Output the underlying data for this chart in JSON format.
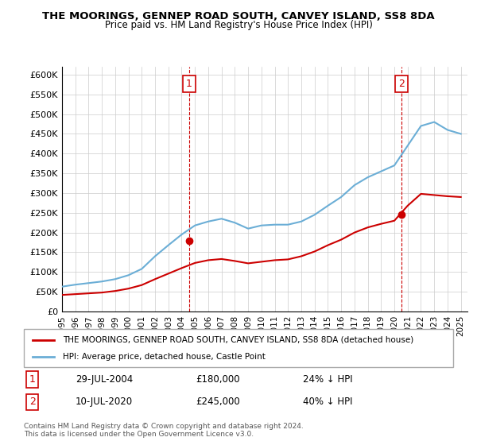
{
  "title": "THE MOORINGS, GENNEP ROAD SOUTH, CANVEY ISLAND, SS8 8DA",
  "subtitle": "Price paid vs. HM Land Registry's House Price Index (HPI)",
  "legend_line1": "THE MOORINGS, GENNEP ROAD SOUTH, CANVEY ISLAND, SS8 8DA (detached house)",
  "legend_line2": "HPI: Average price, detached house, Castle Point",
  "annotation1_label": "1",
  "annotation1_date": "29-JUL-2004",
  "annotation1_price": "£180,000",
  "annotation1_hpi": "24% ↓ HPI",
  "annotation2_label": "2",
  "annotation2_date": "10-JUL-2020",
  "annotation2_price": "£245,000",
  "annotation2_hpi": "40% ↓ HPI",
  "footnote": "Contains HM Land Registry data © Crown copyright and database right 2024.\nThis data is licensed under the Open Government Licence v3.0.",
  "hpi_color": "#6baed6",
  "price_color": "#cc0000",
  "marker_color": "#cc0000",
  "annotation_color": "#cc0000",
  "ylim": [
    0,
    620000
  ],
  "yticks": [
    0,
    50000,
    100000,
    150000,
    200000,
    250000,
    300000,
    350000,
    400000,
    450000,
    500000,
    550000,
    600000
  ],
  "ytick_labels": [
    "£0",
    "£50K",
    "£100K",
    "£150K",
    "£200K",
    "£250K",
    "£300K",
    "£350K",
    "£400K",
    "£450K",
    "£500K",
    "£550K",
    "£600K"
  ],
  "hpi_years": [
    1995,
    1996,
    1997,
    1998,
    1999,
    2000,
    2001,
    2002,
    2003,
    2004,
    2005,
    2006,
    2007,
    2008,
    2009,
    2010,
    2011,
    2012,
    2013,
    2014,
    2015,
    2016,
    2017,
    2018,
    2019,
    2020,
    2021,
    2022,
    2023,
    2024,
    2025
  ],
  "hpi_values": [
    63000,
    68000,
    72000,
    76000,
    82000,
    92000,
    108000,
    140000,
    168000,
    195000,
    218000,
    228000,
    235000,
    225000,
    210000,
    218000,
    220000,
    220000,
    228000,
    245000,
    268000,
    290000,
    320000,
    340000,
    355000,
    370000,
    420000,
    470000,
    480000,
    460000,
    450000
  ],
  "price_years": [
    1995,
    1996,
    1997,
    1998,
    1999,
    2000,
    2001,
    2002,
    2003,
    2004,
    2005,
    2006,
    2007,
    2008,
    2009,
    2010,
    2011,
    2012,
    2013,
    2014,
    2015,
    2016,
    2017,
    2018,
    2019,
    2020,
    2021,
    2022,
    2023,
    2024,
    2025
  ],
  "price_values": [
    42000,
    44000,
    46000,
    48000,
    52000,
    58000,
    67000,
    82000,
    96000,
    110000,
    123000,
    130000,
    133000,
    128000,
    122000,
    126000,
    130000,
    132000,
    140000,
    152000,
    168000,
    182000,
    200000,
    213000,
    222000,
    230000,
    268000,
    298000,
    295000,
    292000,
    290000
  ],
  "sale1_year": 2004.57,
  "sale1_value": 180000,
  "sale2_year": 2020.53,
  "sale2_value": 245000,
  "vline1_year": 2004.57,
  "vline2_year": 2020.53
}
